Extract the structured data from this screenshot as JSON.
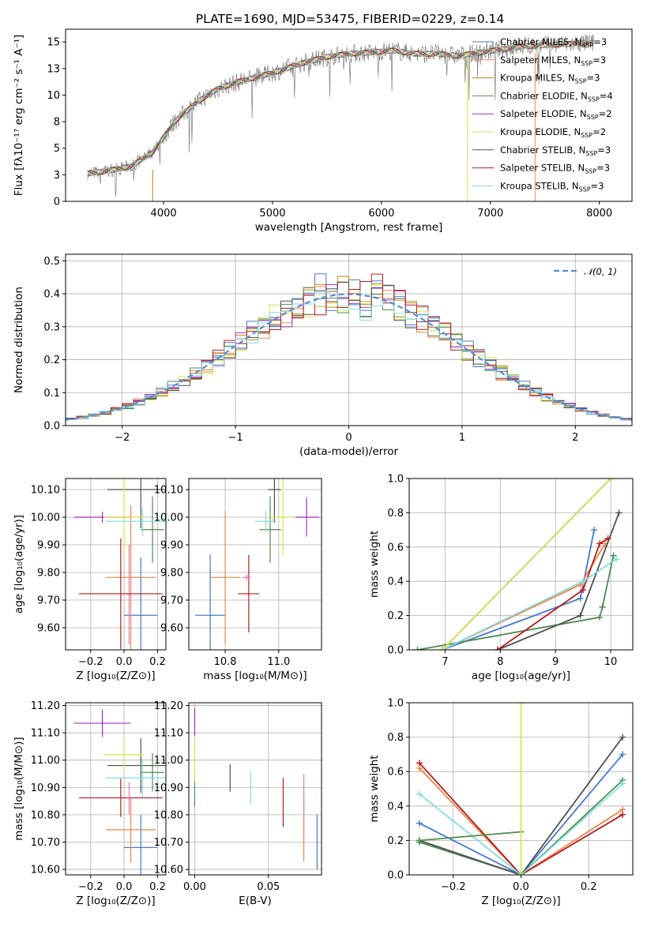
{
  "figure": {
    "title": "PLATE=1690, MJD=53475, FIBERID=0229, z=0.14"
  },
  "chart_data": [
    {
      "id": "spectrum",
      "type": "line",
      "xlabel": "wavelength [Angstrom, rest frame]",
      "ylabel": "Flux [fλ10⁻¹⁷ erg cm⁻² s⁻¹ A⁻¹]",
      "xlim": [
        3100,
        8300
      ],
      "ylim": [
        0,
        16.2
      ],
      "xticks": [
        4000,
        5000,
        6000,
        7000,
        8000
      ],
      "yticks": [
        0.0,
        2.5,
        5.0,
        7.5,
        10.0,
        12.5,
        15.0
      ],
      "grid": false,
      "legend_position": "upper-right",
      "continuum_x": [
        3300,
        3500,
        3700,
        3900,
        4100,
        4300,
        4500,
        4700,
        4900,
        5100,
        5300,
        5500,
        5700,
        5900,
        6100,
        6300,
        6500,
        6700,
        6900,
        7100,
        7300,
        7500,
        7700,
        7900
      ],
      "continuum_y": [
        2.6,
        2.9,
        3.3,
        4.6,
        7.5,
        9.3,
        10.6,
        11.3,
        11.8,
        12.4,
        13.1,
        13.6,
        13.9,
        14.0,
        14.2,
        13.9,
        13.9,
        13.7,
        14.0,
        14.3,
        14.6,
        14.7,
        14.8,
        14.9
      ],
      "series": [
        {
          "name": "Chabrier MILES, N_SSP=3",
          "color": "#4878d0"
        },
        {
          "name": "Salpeter MILES, N_SSP=3",
          "color": "#ee854a"
        },
        {
          "name": "Kroupa MILES, N_SSP=3",
          "color": "#b8860b"
        },
        {
          "name": "Chabrier ELODIE, N_SSP=4",
          "color": "#4f8c4f"
        },
        {
          "name": "Salpeter ELODIE, N_SSP=2",
          "color": "#9932cc"
        },
        {
          "name": "Kroupa ELODIE, N_SSP=2",
          "color": "#d6e64a"
        },
        {
          "name": "Chabrier STELIB, N_SSP=3",
          "color": "#505050"
        },
        {
          "name": "Salpeter STELIB, N_SSP=3",
          "color": "#b71c1c"
        },
        {
          "name": "Kroupa STELIB, N_SSP=3",
          "color": "#80dede"
        }
      ],
      "legend_labels": [
        {
          "pre": "Chabrier MILES, N",
          "sub": "SSP",
          "post": "=3"
        },
        {
          "pre": "Salpeter MILES, N",
          "sub": "SSP",
          "post": "=3"
        },
        {
          "pre": "Kroupa MILES, N",
          "sub": "SSP",
          "post": "=3"
        },
        {
          "pre": "Chabrier ELODIE, N",
          "sub": "SSP",
          "post": "=4"
        },
        {
          "pre": "Salpeter ELODIE, N",
          "sub": "SSP",
          "post": "=2"
        },
        {
          "pre": "Kroupa ELODIE, N",
          "sub": "SSP",
          "post": "=2"
        },
        {
          "pre": "Chabrier STELIB, N",
          "sub": "SSP",
          "post": "=3"
        },
        {
          "pre": "Salpeter STELIB, N",
          "sub": "SSP",
          "post": "=3"
        },
        {
          "pre": "Kroupa STELIB, N",
          "sub": "SSP",
          "post": "=3"
        }
      ]
    },
    {
      "id": "residuals",
      "type": "histogram",
      "xlabel": "(data-model)/error",
      "ylabel": "Normed distribution",
      "xlim": [
        -2.5,
        2.5
      ],
      "ylim": [
        0,
        0.52
      ],
      "xticks": [
        -2,
        -1,
        0,
        1,
        2
      ],
      "yticks": [
        0.0,
        0.1,
        0.2,
        0.3,
        0.4,
        0.5
      ],
      "grid": true,
      "legend": "𝒩(0, 1)",
      "legend_position": "upper-right",
      "bin_width": 0.1,
      "reference_curve": "normal(0,1) pdf, dashed"
    },
    {
      "id": "age-vs-Z",
      "type": "scatter",
      "xlabel": "Z [log₁₀(Z/Z⊙)]",
      "ylabel": "age  [log₁₀(age/yr)]",
      "xlim": [
        -0.35,
        0.25
      ],
      "ylim": [
        9.52,
        10.14
      ],
      "xticks": [
        -0.2,
        0.0,
        0.2
      ],
      "yticks": [
        9.6,
        9.7,
        9.8,
        9.9,
        10.0,
        10.1
      ],
      "grid": true,
      "points": [
        {
          "x": 0.1,
          "y": 9.645,
          "xerr": 0.1,
          "yerr": 0.21,
          "color": "#4878d0"
        },
        {
          "x": 0.04,
          "y": 9.782,
          "xerr": 0.15,
          "yerr": 0.26,
          "color": "#ee854a"
        },
        {
          "x": 0.17,
          "y": 9.955,
          "xerr": 0.07,
          "yerr": 0.12,
          "color": "#4f8c4f"
        },
        {
          "x": 0.1,
          "y": 10.1,
          "xerr": 0.2,
          "yerr": 0.14,
          "color": "#505050"
        },
        {
          "x": -0.02,
          "y": 9.723,
          "xerr": 0.25,
          "yerr": 0.2,
          "color": "#b71c1c"
        },
        {
          "x": 0.11,
          "y": 9.985,
          "xerr": 0.22,
          "yerr": 0.05,
          "color": "#80dede"
        },
        {
          "x": -0.13,
          "y": 10.0,
          "xerr": 0.17,
          "yerr": 0.02,
          "color": "#9932cc"
        },
        {
          "x": 0.0,
          "y": 10.0,
          "xerr": 0.12,
          "yerr": 0.14,
          "color": "#d6e64a"
        },
        {
          "x": 0.03,
          "y": 9.72,
          "xerr": 0.01,
          "yerr": 0.18,
          "color": "#e377c2"
        }
      ]
    },
    {
      "id": "age-vs-mass",
      "type": "scatter",
      "xlabel": "mass [log₁₀(M/M⊙)]",
      "ylabel": "",
      "xlim": [
        10.58,
        11.2
      ],
      "ylim": [
        9.52,
        10.14
      ],
      "xticks": [
        10.75,
        11.0
      ],
      "yticks": [
        9.6,
        9.7,
        9.8,
        9.9,
        10.0,
        10.1
      ],
      "grid": true,
      "points": [
        {
          "x": 10.68,
          "y": 9.645,
          "xerr": 0.07,
          "yerr": 0.22,
          "color": "#4878d0"
        },
        {
          "x": 10.75,
          "y": 9.782,
          "xerr": 0.07,
          "yerr": 0.24,
          "color": "#ee854a"
        },
        {
          "x": 10.96,
          "y": 9.955,
          "xerr": 0.05,
          "yerr": 0.12,
          "color": "#4f8c4f"
        },
        {
          "x": 10.98,
          "y": 10.1,
          "xerr": 0.03,
          "yerr": 0.12,
          "color": "#505050"
        },
        {
          "x": 10.86,
          "y": 9.723,
          "xerr": 0.05,
          "yerr": 0.14,
          "color": "#b71c1c"
        },
        {
          "x": 10.94,
          "y": 9.985,
          "xerr": 0.05,
          "yerr": 0.04,
          "color": "#80dede"
        },
        {
          "x": 11.13,
          "y": 10.0,
          "xerr": 0.06,
          "yerr": 0.07,
          "color": "#9932cc"
        },
        {
          "x": 11.02,
          "y": 10.0,
          "xerr": 0.06,
          "yerr": 0.14,
          "color": "#d6e64a"
        },
        {
          "x": 10.85,
          "y": 9.782,
          "xerr": 0.02,
          "yerr": 0.01,
          "color": "#e377c2"
        }
      ]
    },
    {
      "id": "mass-weight-vs-age",
      "type": "line",
      "xlabel": "age  [log₁₀(age/yr)]",
      "ylabel": "mass weight",
      "xlim": [
        6.35,
        10.4
      ],
      "ylim": [
        0,
        1.0
      ],
      "xticks": [
        7,
        8,
        9,
        10
      ],
      "yticks": [
        0.0,
        0.2,
        0.4,
        0.6,
        0.8,
        1.0
      ],
      "grid": true,
      "series": [
        {
          "color": "#4878d0",
          "x": [
            6.95,
            9.45,
            9.7
          ],
          "y": [
            0.0,
            0.3,
            0.7
          ]
        },
        {
          "color": "#ee854a",
          "x": [
            6.95,
            9.45,
            9.9
          ],
          "y": [
            0.0,
            0.38,
            0.62
          ]
        },
        {
          "color": "#4f8c4f",
          "x": [
            6.5,
            9.8,
            9.85,
            10.05
          ],
          "y": [
            0.0,
            0.19,
            0.25,
            0.55
          ]
        },
        {
          "color": "#505050",
          "x": [
            7.95,
            9.45,
            10.15
          ],
          "y": [
            0.0,
            0.2,
            0.8
          ]
        },
        {
          "color": "#b71c1c",
          "x": [
            7.95,
            9.5,
            9.8,
            9.95
          ],
          "y": [
            0.0,
            0.35,
            0.62,
            0.65
          ]
        },
        {
          "color": "#80dede",
          "x": [
            6.95,
            9.5,
            10.1
          ],
          "y": [
            0.0,
            0.4,
            0.53
          ]
        },
        {
          "color": "#9932cc",
          "x": [
            6.95,
            10.0
          ],
          "y": [
            0.0,
            1.0
          ]
        },
        {
          "color": "#d6e64a",
          "x": [
            6.95,
            10.0
          ],
          "y": [
            0.0,
            1.0
          ]
        }
      ]
    },
    {
      "id": "mass-vs-Z",
      "type": "scatter",
      "xlabel": "Z [log₁₀(Z/Z⊙)]",
      "ylabel": "mass [log₁₀(M/M⊙)]",
      "xlim": [
        -0.35,
        0.25
      ],
      "ylim": [
        10.58,
        11.21
      ],
      "xticks": [
        -0.2,
        0.0,
        0.2
      ],
      "yticks": [
        10.6,
        10.7,
        10.8,
        10.9,
        11.0,
        11.1,
        11.2
      ],
      "grid": true,
      "points": [
        {
          "x": 0.1,
          "y": 10.68,
          "xerr": 0.1,
          "yerr": 0.12,
          "color": "#4878d0"
        },
        {
          "x": 0.04,
          "y": 10.745,
          "xerr": 0.15,
          "yerr": 0.12,
          "color": "#ee854a"
        },
        {
          "x": 0.17,
          "y": 10.955,
          "xerr": 0.07,
          "yerr": 0.07,
          "color": "#4f8c4f"
        },
        {
          "x": 0.1,
          "y": 10.98,
          "xerr": 0.2,
          "yerr": 0.1,
          "color": "#505050"
        },
        {
          "x": -0.02,
          "y": 10.862,
          "xerr": 0.25,
          "yerr": 0.07,
          "color": "#b71c1c"
        },
        {
          "x": 0.11,
          "y": 10.935,
          "xerr": 0.22,
          "yerr": 0.07,
          "color": "#80dede"
        },
        {
          "x": -0.13,
          "y": 11.135,
          "xerr": 0.17,
          "yerr": 0.05,
          "color": "#9932cc"
        },
        {
          "x": 0.0,
          "y": 11.02,
          "xerr": 0.12,
          "yerr": 0.06,
          "color": "#d6e64a"
        },
        {
          "x": 0.03,
          "y": 10.86,
          "xerr": 0.01,
          "yerr": 0.06,
          "color": "#e377c2"
        }
      ]
    },
    {
      "id": "mass-vs-EBV",
      "type": "scatter",
      "xlabel": "E(B-V)",
      "ylabel": "",
      "xlim": [
        -0.004,
        0.086
      ],
      "ylim": [
        10.58,
        11.21
      ],
      "xticks": [
        0.0,
        0.05
      ],
      "xtick_labels": [
        "0.00",
        "0.05"
      ],
      "yticks": [
        10.6,
        10.7,
        10.8,
        10.9,
        11.0,
        11.1,
        11.2
      ],
      "grid": true,
      "points": [
        {
          "x": 0.083,
          "y": 10.7,
          "yerr": 0.1,
          "color": "#4878d0"
        },
        {
          "x": 0.074,
          "y": 10.75,
          "yerr": 0.12,
          "color": "#ee854a"
        },
        {
          "x": 0.074,
          "y": 10.88,
          "yerr": 0.07,
          "color": "#e377c2"
        },
        {
          "x": 0.0,
          "y": 10.89,
          "yerr": 0.06,
          "color": "#4f8c4f"
        },
        {
          "x": 0.024,
          "y": 10.935,
          "yerr": 0.05,
          "color": "#505050"
        },
        {
          "x": 0.06,
          "y": 10.845,
          "yerr": 0.09,
          "color": "#b71c1c"
        },
        {
          "x": 0.038,
          "y": 10.9,
          "yerr": 0.06,
          "color": "#80dede"
        },
        {
          "x": 0.0,
          "y": 11.14,
          "yerr": 0.05,
          "color": "#9932cc"
        },
        {
          "x": 0.0,
          "y": 11.0,
          "yerr": 0.08,
          "color": "#d6e64a"
        }
      ]
    },
    {
      "id": "mass-weight-vs-Z",
      "type": "line",
      "xlabel": "Z [log₁₀(Z/Z⊙)]",
      "ylabel": "mass weight",
      "xlim": [
        -0.33,
        0.33
      ],
      "ylim": [
        0,
        1.0
      ],
      "xticks": [
        -0.2,
        0.0,
        0.2
      ],
      "yticks": [
        0.0,
        0.2,
        0.4,
        0.6,
        0.8,
        1.0
      ],
      "grid": true,
      "series": [
        {
          "color": "#4878d0",
          "x": [
            -0.3,
            0.0,
            0.3
          ],
          "y": [
            0.3,
            0.0,
            0.7
          ]
        },
        {
          "color": "#ee854a",
          "x": [
            -0.3,
            0.0,
            0.3
          ],
          "y": [
            0.62,
            0.0,
            0.38
          ]
        },
        {
          "color": "#4f8c4f",
          "x": [
            -0.3,
            0.0,
            0.3
          ],
          "y": [
            0.19,
            0.0,
            0.55
          ]
        },
        {
          "color": "#505050",
          "x": [
            -0.3,
            0.0,
            0.3
          ],
          "y": [
            0.2,
            0.0,
            0.8
          ]
        },
        {
          "color": "#b71c1c",
          "x": [
            -0.3,
            0.0,
            0.3
          ],
          "y": [
            0.65,
            0.0,
            0.35
          ]
        },
        {
          "color": "#80dede",
          "x": [
            -0.3,
            0.0,
            0.3
          ],
          "y": [
            0.47,
            0.0,
            0.53
          ]
        },
        {
          "color": "#4f8c4f",
          "x": [
            -0.3,
            0.0
          ],
          "y": [
            0.2,
            0.25
          ]
        },
        {
          "color": "#d6e64a",
          "x": [
            0.0,
            0.0
          ],
          "y": [
            0.0,
            1.0
          ]
        }
      ]
    }
  ]
}
